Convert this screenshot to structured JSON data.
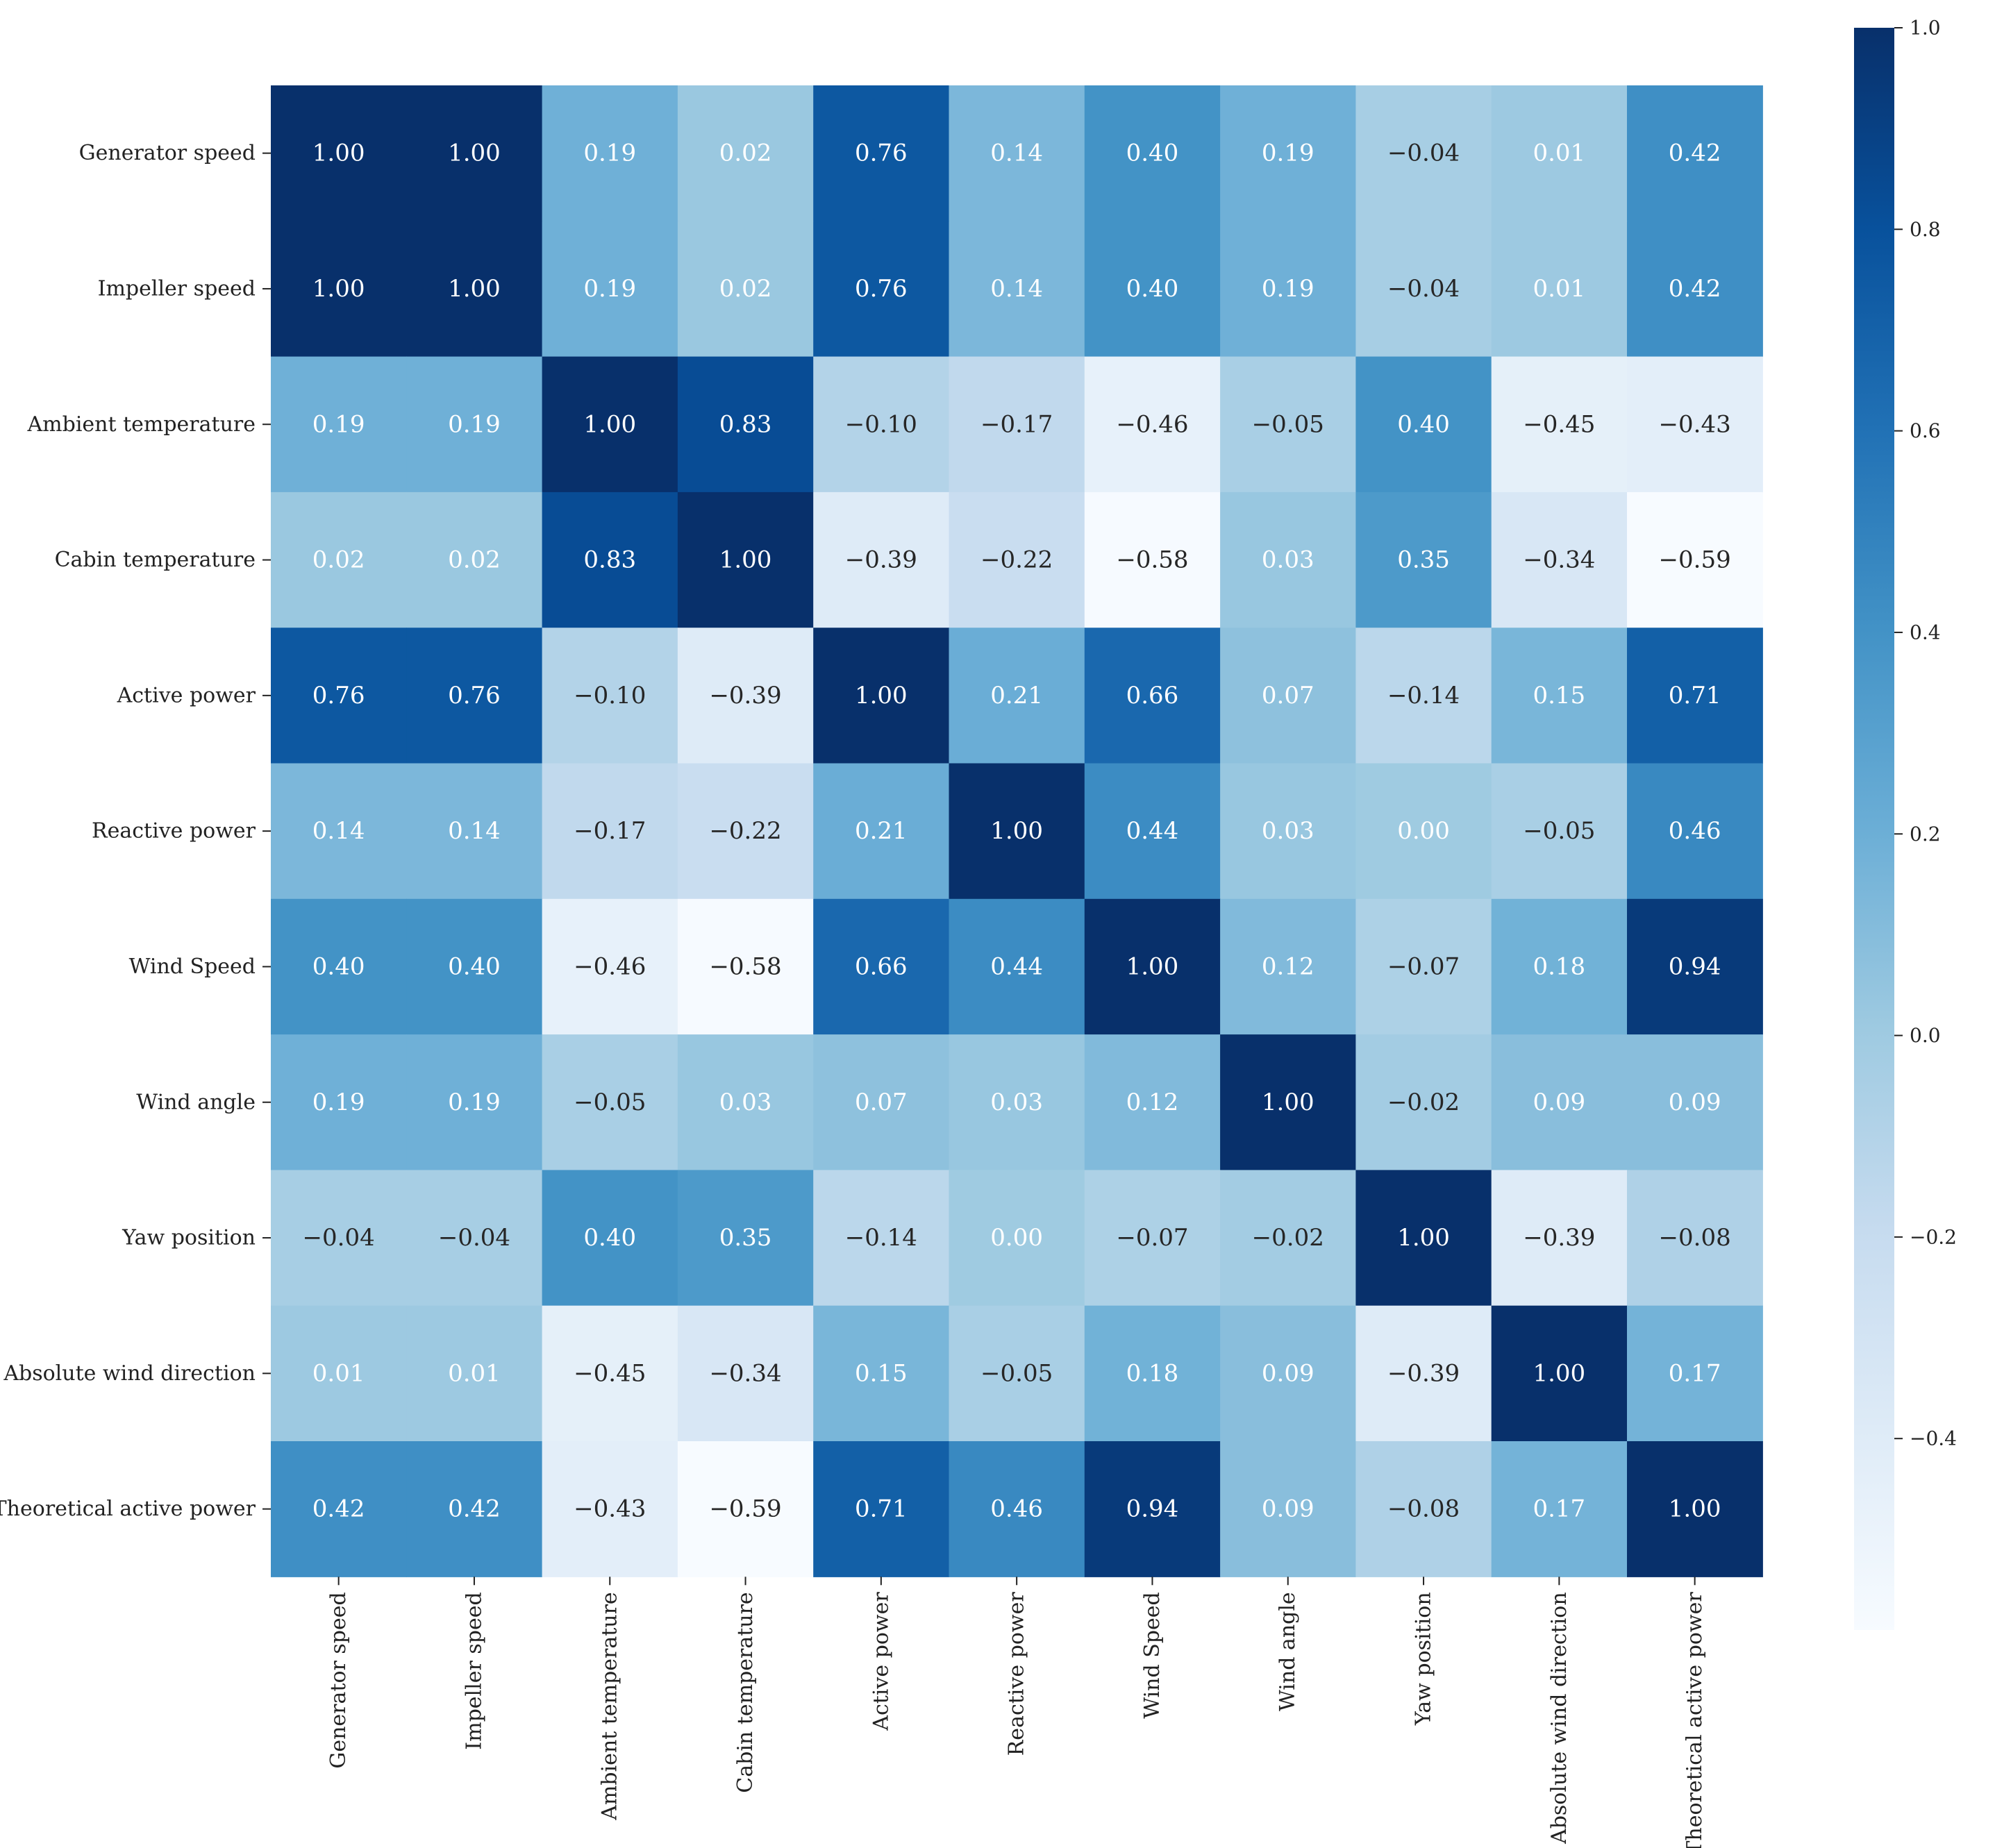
{
  "chart_data": {
    "type": "heatmap",
    "title": "",
    "xlabel": "",
    "ylabel": "",
    "variables": [
      "Generator speed",
      "Impeller speed",
      "Ambient temperature",
      "Cabin temperature",
      "Active power",
      "Reactive power",
      "Wind Speed",
      "Wind angle",
      "Yaw position",
      "Absolute wind direction",
      "Theoretical active power"
    ],
    "matrix": [
      [
        1.0,
        1.0,
        0.19,
        0.02,
        0.76,
        0.14,
        0.4,
        0.19,
        -0.04,
        0.01,
        0.42
      ],
      [
        1.0,
        1.0,
        0.19,
        0.02,
        0.76,
        0.14,
        0.4,
        0.19,
        -0.04,
        0.01,
        0.42
      ],
      [
        0.19,
        0.19,
        1.0,
        0.83,
        -0.1,
        -0.17,
        -0.46,
        -0.05,
        0.4,
        -0.45,
        -0.43
      ],
      [
        0.02,
        0.02,
        0.83,
        1.0,
        -0.39,
        -0.22,
        -0.58,
        0.03,
        0.35,
        -0.34,
        -0.59
      ],
      [
        0.76,
        0.76,
        -0.1,
        -0.39,
        1.0,
        0.21,
        0.66,
        0.07,
        -0.14,
        0.15,
        0.71
      ],
      [
        0.14,
        0.14,
        -0.17,
        -0.22,
        0.21,
        1.0,
        0.44,
        0.03,
        0.0,
        -0.05,
        0.46
      ],
      [
        0.4,
        0.4,
        -0.46,
        -0.58,
        0.66,
        0.44,
        1.0,
        0.12,
        -0.07,
        0.18,
        0.94
      ],
      [
        0.19,
        0.19,
        -0.05,
        0.03,
        0.07,
        0.03,
        0.12,
        1.0,
        -0.02,
        0.09,
        0.09
      ],
      [
        -0.04,
        -0.04,
        0.4,
        0.35,
        -0.14,
        0.0,
        -0.07,
        -0.02,
        1.0,
        -0.39,
        -0.08
      ],
      [
        0.01,
        0.01,
        -0.45,
        -0.34,
        0.15,
        -0.05,
        0.18,
        0.09,
        -0.39,
        1.0,
        0.17
      ],
      [
        0.42,
        0.42,
        -0.43,
        -0.59,
        0.71,
        0.46,
        0.94,
        0.09,
        -0.08,
        0.17,
        1.0
      ]
    ],
    "value_format": "2 decimals",
    "colormap": "Blues",
    "color_range": [
      -0.59,
      1.0
    ],
    "colorbar": {
      "ticks": [
        1.0,
        0.8,
        0.6,
        0.4,
        0.2,
        0.0,
        -0.2,
        -0.4
      ],
      "tick_labels": [
        "1.0",
        "0.8",
        "0.6",
        "0.4",
        "0.2",
        "0.0",
        "−0.2",
        "−0.4"
      ]
    },
    "colors": {
      "colormap_stops": [
        "#f7fbff",
        "#deebf7",
        "#c6dbef",
        "#9ecae1",
        "#6baed6",
        "#4292c6",
        "#2171b5",
        "#08519c",
        "#08306b"
      ],
      "text_dark": "#262626",
      "text_light": "#ffffff",
      "axis": "#222222"
    }
  }
}
